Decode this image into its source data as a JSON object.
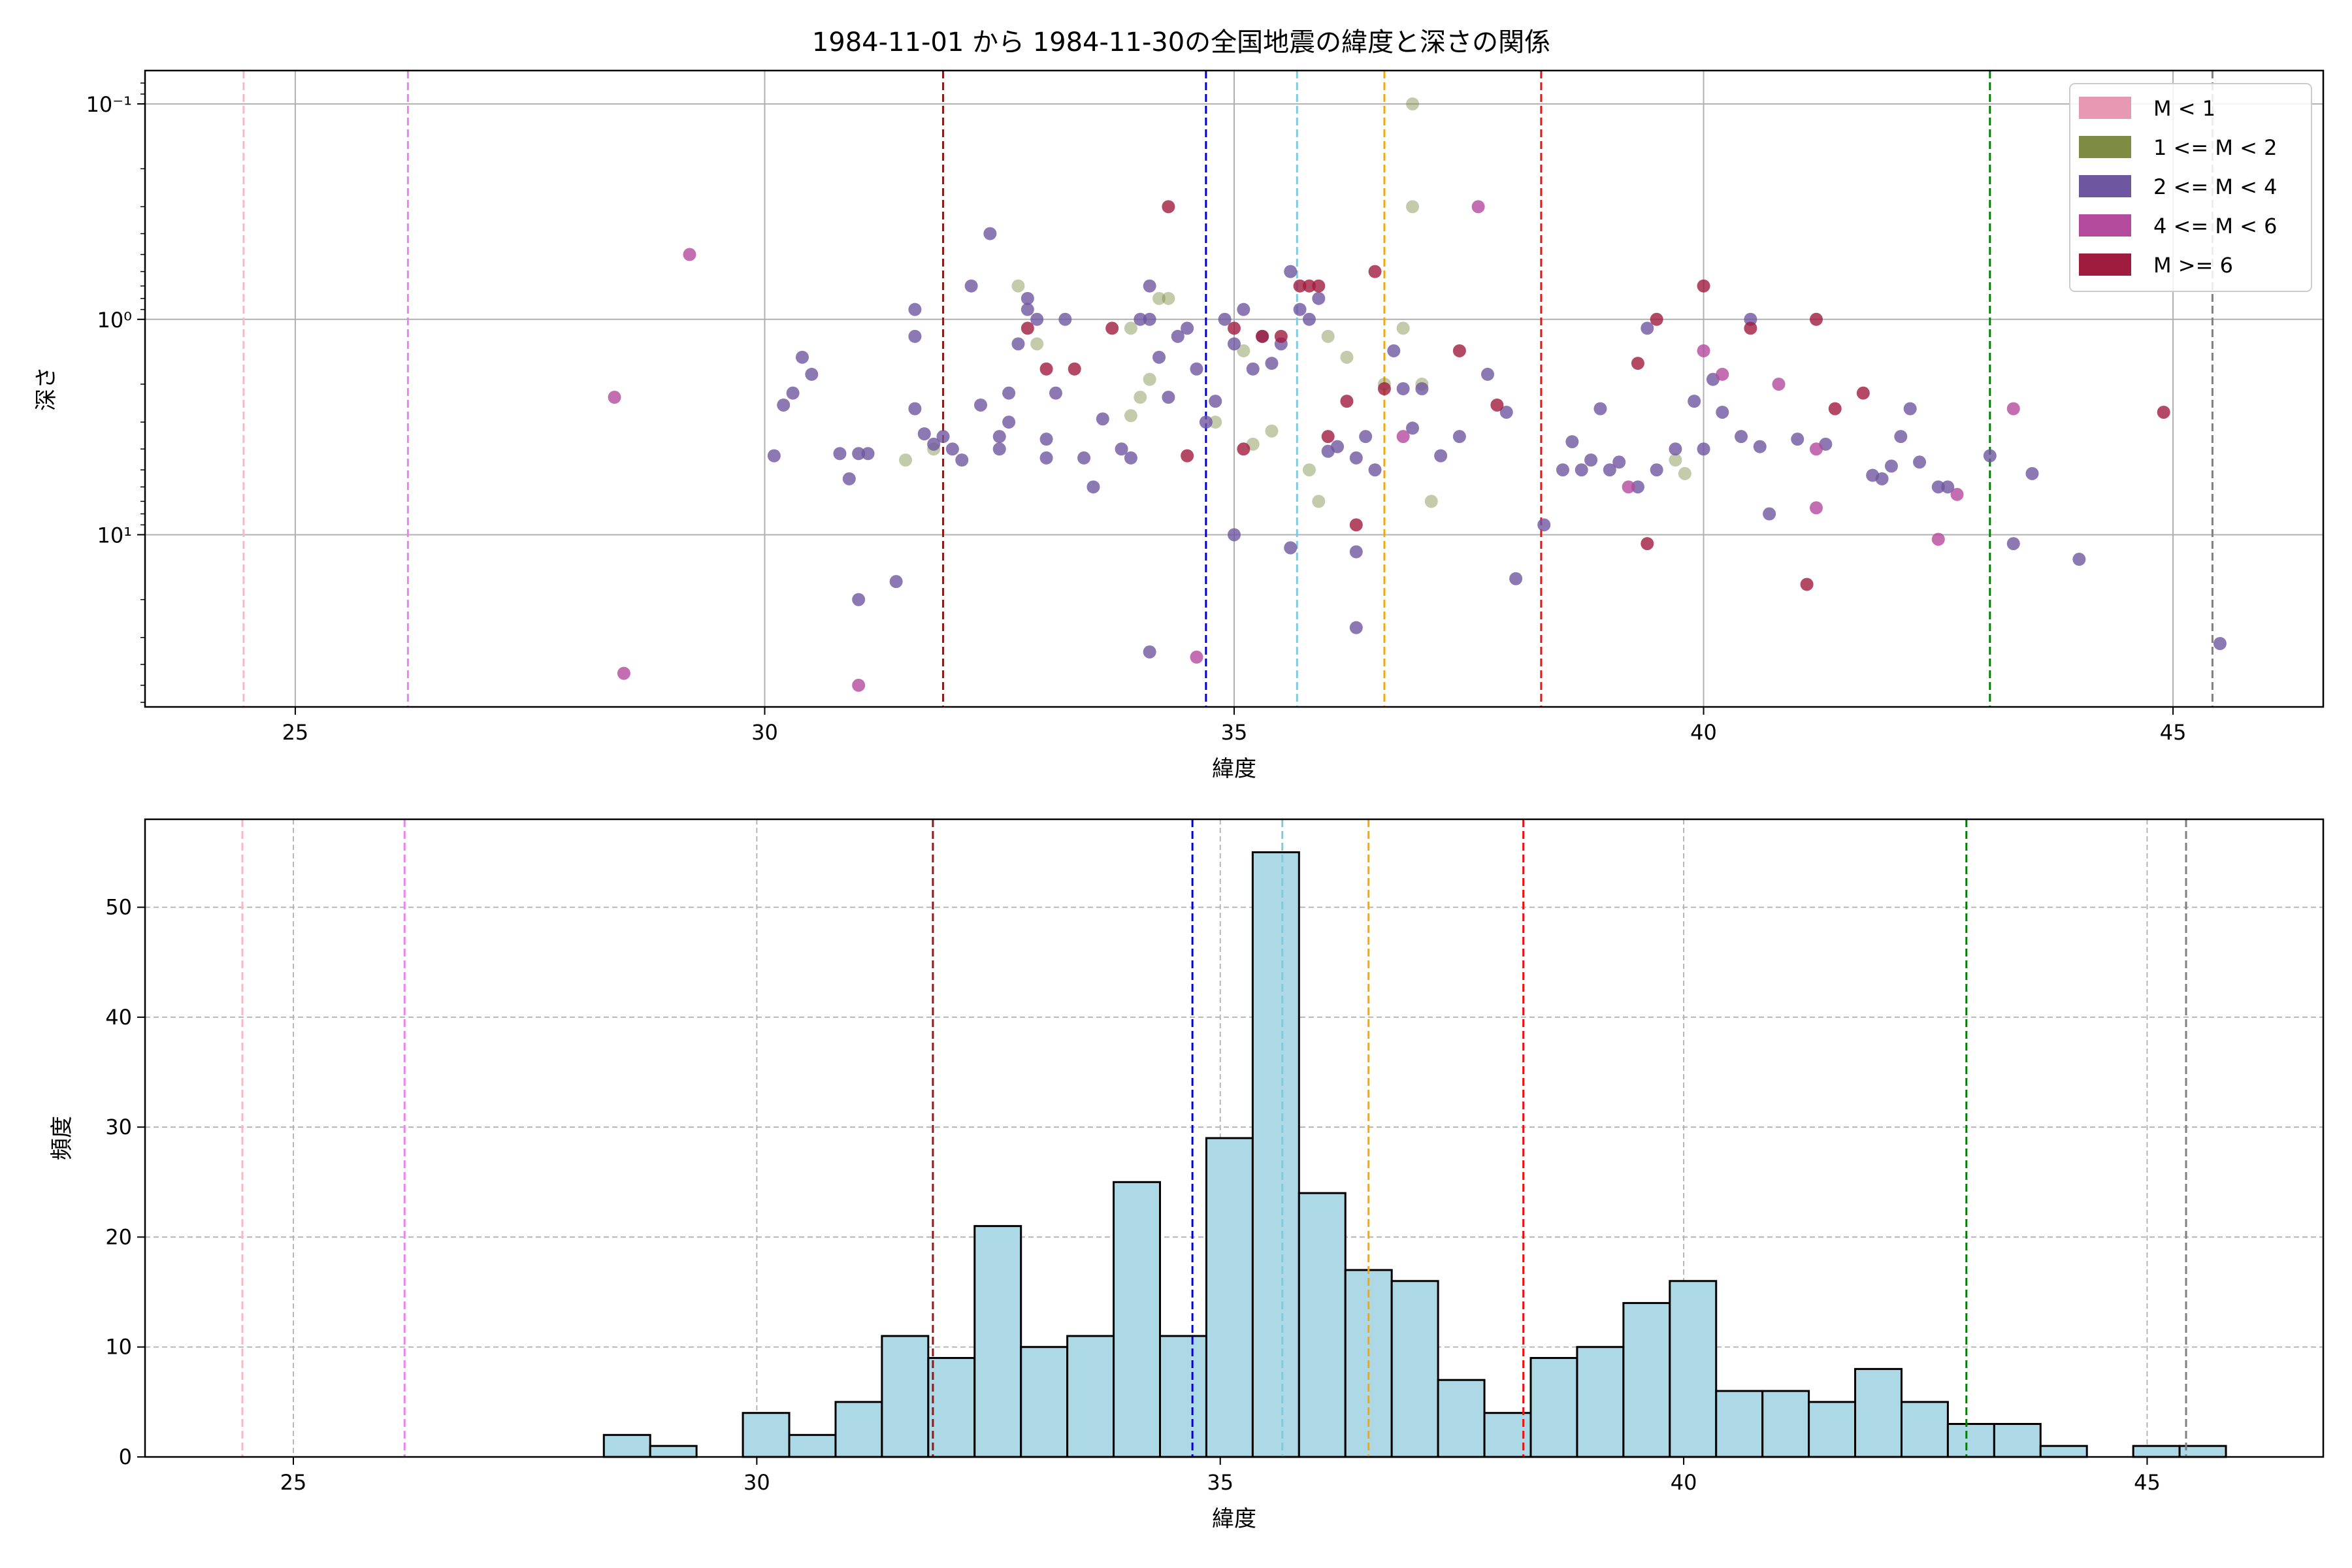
{
  "figure_title": "1984-11-01 から 1984-11-30の全国地震の緯度と深さの関係",
  "chart_data": [
    {
      "type": "scatter",
      "title": "1984-11-01 から 1984-11-30の全国地震の緯度と深さの関係",
      "xlabel": "緯度",
      "ylabel": "深さ",
      "xlim": [
        23.4,
        46.6
      ],
      "ylim": [
        63,
        0.07
      ],
      "yscale": "log",
      "y_inverted": true,
      "grid": true,
      "legend_position": "top-right",
      "xticks": [
        25,
        30,
        35,
        40,
        45
      ],
      "xtick_labels": [
        "25",
        "30",
        "35",
        "40",
        "45"
      ],
      "yticks": [
        0.1,
        1,
        10
      ],
      "ytick_labels": [
        "10⁻¹",
        "10⁰",
        "10¹"
      ],
      "vlines": [
        {
          "x": 24.45,
          "color": "#ffb6c1"
        },
        {
          "x": 26.2,
          "color": "#ee82ee"
        },
        {
          "x": 31.9,
          "color": "#8b1a1a"
        },
        {
          "x": 34.7,
          "color": "#0000cd"
        },
        {
          "x": 35.67,
          "color": "#7ecbdf"
        },
        {
          "x": 36.6,
          "color": "#ffa500"
        },
        {
          "x": 38.27,
          "color": "#ee1111"
        },
        {
          "x": 43.05,
          "color": "#008000"
        },
        {
          "x": 45.42,
          "color": "#808080"
        }
      ],
      "series": [
        {
          "name": "M < 1",
          "color": "#e799b4",
          "points": []
        },
        {
          "name": "1 <= M < 2",
          "color": "#7d8c42",
          "points": [
            [
              32.7,
              0.7
            ],
            [
              32.9,
              1.3
            ],
            [
              33.9,
              1.1
            ],
            [
              34.0,
              2.3
            ],
            [
              34.1,
              1.9
            ],
            [
              34.2,
              0.8
            ],
            [
              34.3,
              0.8
            ],
            [
              34.8,
              3.0
            ],
            [
              35.1,
              1.4
            ],
            [
              35.2,
              3.8
            ],
            [
              35.4,
              3.3
            ],
            [
              35.8,
              5.0
            ],
            [
              35.9,
              7.0
            ],
            [
              36.0,
              1.2
            ],
            [
              36.2,
              1.5
            ],
            [
              36.6,
              2.0
            ],
            [
              36.8,
              1.1
            ],
            [
              36.9,
              0.1
            ],
            [
              36.9,
              0.3
            ],
            [
              37.0,
              2.0
            ],
            [
              37.1,
              7.0
            ],
            [
              31.5,
              4.5
            ],
            [
              31.8,
              4.0
            ],
            [
              39.7,
              4.5
            ],
            [
              39.8,
              5.2
            ],
            [
              33.9,
              2.8
            ]
          ]
        },
        {
          "name": "2 <= M < 4",
          "color": "#6f56a0",
          "points": [
            [
              30.1,
              4.3
            ],
            [
              30.2,
              2.5
            ],
            [
              30.3,
              2.2
            ],
            [
              30.4,
              1.5
            ],
            [
              30.5,
              1.8
            ],
            [
              30.8,
              4.2
            ],
            [
              30.9,
              5.5
            ],
            [
              31.0,
              4.2
            ],
            [
              31.0,
              20.0
            ],
            [
              31.1,
              4.2
            ],
            [
              31.4,
              16.5
            ],
            [
              31.6,
              1.2
            ],
            [
              31.6,
              0.9
            ],
            [
              31.6,
              2.6
            ],
            [
              31.7,
              3.4
            ],
            [
              31.8,
              3.8
            ],
            [
              31.9,
              3.5
            ],
            [
              32.0,
              4.0
            ],
            [
              32.1,
              4.5
            ],
            [
              32.2,
              0.7
            ],
            [
              32.3,
              2.5
            ],
            [
              32.4,
              0.4
            ],
            [
              32.5,
              3.5
            ],
            [
              32.5,
              4.0
            ],
            [
              32.6,
              3.0
            ],
            [
              32.6,
              2.2
            ],
            [
              32.7,
              1.3
            ],
            [
              32.8,
              0.8
            ],
            [
              32.8,
              0.9
            ],
            [
              32.9,
              1.0
            ],
            [
              33.0,
              3.6
            ],
            [
              33.0,
              4.4
            ],
            [
              33.1,
              2.2
            ],
            [
              33.2,
              1.0
            ],
            [
              33.4,
              4.4
            ],
            [
              33.5,
              6.0
            ],
            [
              33.6,
              2.9
            ],
            [
              33.8,
              4.0
            ],
            [
              33.9,
              4.4
            ],
            [
              34.0,
              1.0
            ],
            [
              34.1,
              1.0
            ],
            [
              34.1,
              0.7
            ],
            [
              34.2,
              1.5
            ],
            [
              34.3,
              2.3
            ],
            [
              34.4,
              1.2
            ],
            [
              34.5,
              1.1
            ],
            [
              34.6,
              1.7
            ],
            [
              34.7,
              3.0
            ],
            [
              34.8,
              2.4
            ],
            [
              34.9,
              1.0
            ],
            [
              35.0,
              1.3
            ],
            [
              35.1,
              0.9
            ],
            [
              35.2,
              1.7
            ],
            [
              35.3,
              1.2
            ],
            [
              35.4,
              1.6
            ],
            [
              35.5,
              1.3
            ],
            [
              35.6,
              0.6
            ],
            [
              35.7,
              0.9
            ],
            [
              35.8,
              1.0
            ],
            [
              35.9,
              0.8
            ],
            [
              36.0,
              4.1
            ],
            [
              36.1,
              3.9
            ],
            [
              36.3,
              4.4
            ],
            [
              36.4,
              3.5
            ],
            [
              36.5,
              5.0
            ],
            [
              36.7,
              1.4
            ],
            [
              36.8,
              2.1
            ],
            [
              36.9,
              3.2
            ],
            [
              37.0,
              2.1
            ],
            [
              37.2,
              4.3
            ],
            [
              37.4,
              3.5
            ],
            [
              37.7,
              1.8
            ],
            [
              37.9,
              2.7
            ],
            [
              38.0,
              16.0
            ],
            [
              38.3,
              9.0
            ],
            [
              38.5,
              5.0
            ],
            [
              38.6,
              3.7
            ],
            [
              38.7,
              5.0
            ],
            [
              38.8,
              4.5
            ],
            [
              38.9,
              2.6
            ],
            [
              39.0,
              5.0
            ],
            [
              39.1,
              4.6
            ],
            [
              39.3,
              6.0
            ],
            [
              39.4,
              1.1
            ],
            [
              39.5,
              5.0
            ],
            [
              39.7,
              4.0
            ],
            [
              39.9,
              2.4
            ],
            [
              40.0,
              4.0
            ],
            [
              40.1,
              1.9
            ],
            [
              40.2,
              2.7
            ],
            [
              40.4,
              3.5
            ],
            [
              40.5,
              1.0
            ],
            [
              40.6,
              3.9
            ],
            [
              40.7,
              8.0
            ],
            [
              41.0,
              3.6
            ],
            [
              41.3,
              3.8
            ],
            [
              41.8,
              5.3
            ],
            [
              41.9,
              5.5
            ],
            [
              42.0,
              4.8
            ],
            [
              42.1,
              3.5
            ],
            [
              42.2,
              2.6
            ],
            [
              42.3,
              4.6
            ],
            [
              42.5,
              6.0
            ],
            [
              42.6,
              6.0
            ],
            [
              43.05,
              4.3
            ],
            [
              43.3,
              11.0
            ],
            [
              43.5,
              5.2
            ],
            [
              44.0,
              13.0
            ],
            [
              45.5,
              32.0
            ],
            [
              34.1,
              35.0
            ],
            [
              36.3,
              27.0
            ],
            [
              35.0,
              10.0
            ],
            [
              35.6,
              11.5
            ],
            [
              36.3,
              12.0
            ]
          ]
        },
        {
          "name": "4 <= M < 6",
          "color": "#b44a9c",
          "points": [
            [
              28.4,
              2.3
            ],
            [
              28.5,
              44.0
            ],
            [
              29.2,
              0.5
            ],
            [
              31.0,
              50.0
            ],
            [
              34.6,
              37.0
            ],
            [
              36.8,
              3.5
            ],
            [
              37.6,
              0.3
            ],
            [
              39.2,
              6.0
            ],
            [
              40.0,
              1.4
            ],
            [
              40.2,
              1.8
            ],
            [
              40.8,
              2.0
            ],
            [
              41.2,
              7.5
            ],
            [
              42.5,
              10.5
            ],
            [
              42.7,
              6.5
            ],
            [
              43.3,
              2.6
            ],
            [
              41.2,
              4.0
            ]
          ]
        },
        {
          "name": "M >= 6",
          "color": "#a01c3e",
          "points": [
            [
              32.8,
              1.1
            ],
            [
              33.0,
              1.7
            ],
            [
              33.3,
              1.7
            ],
            [
              33.7,
              1.1
            ],
            [
              34.3,
              0.3
            ],
            [
              34.5,
              4.3
            ],
            [
              35.0,
              1.1
            ],
            [
              35.1,
              4.0
            ],
            [
              35.5,
              1.2
            ],
            [
              35.7,
              0.7
            ],
            [
              36.2,
              2.4
            ],
            [
              36.3,
              9.0
            ],
            [
              36.5,
              0.6
            ],
            [
              36.6,
              2.1
            ],
            [
              37.4,
              1.4
            ],
            [
              37.8,
              2.5
            ],
            [
              39.3,
              1.6
            ],
            [
              39.4,
              11.0
            ],
            [
              39.5,
              1.0
            ],
            [
              40.0,
              0.7
            ],
            [
              40.5,
              1.1
            ],
            [
              41.1,
              17.0
            ],
            [
              41.2,
              1.0
            ],
            [
              41.4,
              2.6
            ],
            [
              41.7,
              2.2
            ],
            [
              44.9,
              2.7
            ],
            [
              35.9,
              0.7
            ],
            [
              35.8,
              0.7
            ],
            [
              35.3,
              1.2
            ],
            [
              36.0,
              3.5
            ]
          ]
        }
      ]
    },
    {
      "type": "bar",
      "xlabel": "緯度",
      "ylabel": "頻度",
      "xlim": [
        23.4,
        46.9
      ],
      "ylim": [
        0,
        58
      ],
      "grid": true,
      "xticks": [
        25,
        30,
        35,
        40,
        45
      ],
      "xtick_labels": [
        "25",
        "30",
        "35",
        "40",
        "45"
      ],
      "yticks": [
        0,
        10,
        20,
        30,
        40,
        50
      ],
      "ytick_labels": [
        "0",
        "10",
        "20",
        "30",
        "40",
        "50"
      ],
      "bar_color": "#add8e6",
      "bin_width": 0.5,
      "bins": [
        {
          "x0": 28.35,
          "count": 2
        },
        {
          "x0": 28.85,
          "count": 1
        },
        {
          "x0": 29.35,
          "count": 0
        },
        {
          "x0": 29.85,
          "count": 4
        },
        {
          "x0": 30.35,
          "count": 2
        },
        {
          "x0": 30.85,
          "count": 5
        },
        {
          "x0": 31.35,
          "count": 11
        },
        {
          "x0": 31.85,
          "count": 9
        },
        {
          "x0": 32.35,
          "count": 21
        },
        {
          "x0": 32.85,
          "count": 10
        },
        {
          "x0": 33.35,
          "count": 11
        },
        {
          "x0": 33.85,
          "count": 25
        },
        {
          "x0": 34.35,
          "count": 11
        },
        {
          "x0": 34.85,
          "count": 29
        },
        {
          "x0": 35.35,
          "count": 55
        },
        {
          "x0": 35.85,
          "count": 24
        },
        {
          "x0": 36.35,
          "count": 17
        },
        {
          "x0": 36.85,
          "count": 16
        },
        {
          "x0": 37.35,
          "count": 7
        },
        {
          "x0": 37.85,
          "count": 4
        },
        {
          "x0": 38.35,
          "count": 9
        },
        {
          "x0": 38.85,
          "count": 10
        },
        {
          "x0": 39.35,
          "count": 14
        },
        {
          "x0": 39.85,
          "count": 16
        },
        {
          "x0": 40.35,
          "count": 6
        },
        {
          "x0": 40.85,
          "count": 6
        },
        {
          "x0": 41.35,
          "count": 5
        },
        {
          "x0": 41.85,
          "count": 8
        },
        {
          "x0": 42.35,
          "count": 5
        },
        {
          "x0": 42.85,
          "count": 3
        },
        {
          "x0": 43.35,
          "count": 3
        },
        {
          "x0": 43.85,
          "count": 1
        },
        {
          "x0": 44.35,
          "count": 0
        },
        {
          "x0": 44.85,
          "count": 1
        },
        {
          "x0": 45.35,
          "count": 1
        }
      ],
      "vlines": [
        {
          "x": 24.45,
          "color": "#ffb6c1"
        },
        {
          "x": 26.2,
          "color": "#ee82ee"
        },
        {
          "x": 31.9,
          "color": "#8b1a1a"
        },
        {
          "x": 34.7,
          "color": "#0000cd"
        },
        {
          "x": 35.67,
          "color": "#7ecbdf"
        },
        {
          "x": 36.6,
          "color": "#ffa500"
        },
        {
          "x": 38.27,
          "color": "#ee1111"
        },
        {
          "x": 43.05,
          "color": "#008000"
        },
        {
          "x": 45.42,
          "color": "#808080"
        }
      ]
    }
  ]
}
